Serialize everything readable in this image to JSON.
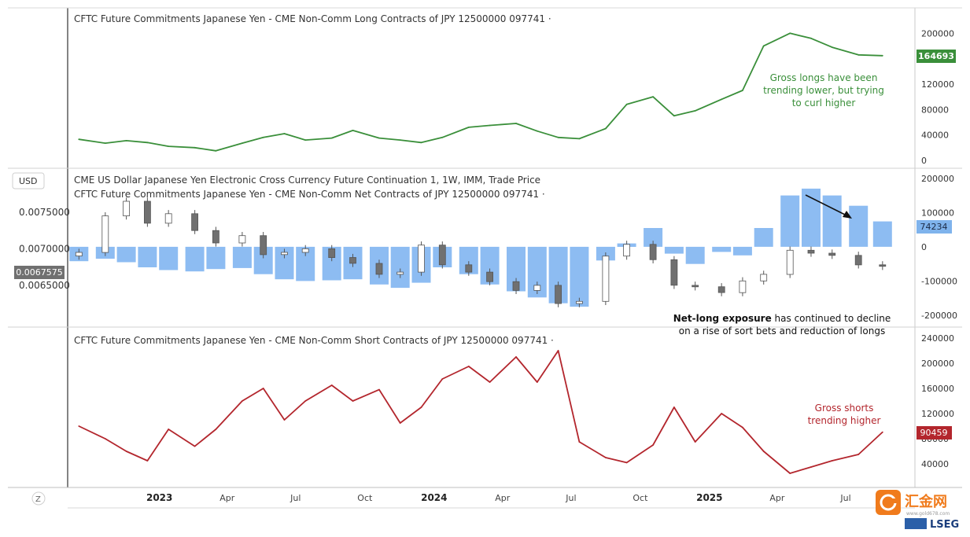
{
  "logo": {
    "brand": "汇金网",
    "url": "www.gold678.com",
    "vendor": "LSEG"
  },
  "colors": {
    "long": "#3a8f3a",
    "short": "#b3262d",
    "net_bar": "#8dbcf2",
    "candle_up": "#ffffff",
    "candle_down": "#707070"
  },
  "ui": {
    "usd_button": "USD",
    "z_button": "Z"
  },
  "chart_data": [
    {
      "type": "line",
      "title": "CFTC Future Commitments Japanese Yen - CME Non-Comm Long Contracts of JPY 12500000 097741 ·",
      "x": [
        "2022-09-16",
        "2022-10-21",
        "2022-11-18",
        "2022-12-16",
        "2023-01-13",
        "2023-02-17",
        "2023-03-17",
        "2023-04-21",
        "2023-05-19",
        "2023-06-16",
        "2023-07-14",
        "2023-08-18",
        "2023-09-15",
        "2023-10-20",
        "2023-11-17",
        "2023-12-15",
        "2024-01-12",
        "2024-02-16",
        "2024-03-15",
        "2024-04-19",
        "2024-05-17",
        "2024-06-14",
        "2024-07-12",
        "2024-08-16",
        "2024-09-13",
        "2024-10-18",
        "2024-11-15",
        "2024-12-13",
        "2025-01-17",
        "2025-02-14",
        "2025-03-14",
        "2025-04-18",
        "2025-05-16",
        "2025-06-13",
        "2025-07-18",
        "2025-08-19"
      ],
      "values": [
        33000,
        27000,
        31000,
        28000,
        22000,
        20000,
        15000,
        27000,
        36000,
        42000,
        32000,
        35000,
        47000,
        35000,
        32000,
        28000,
        36000,
        52000,
        55000,
        58000,
        46000,
        36000,
        34000,
        50000,
        88000,
        100000,
        70000,
        78000,
        96000,
        110000,
        180000,
        200000,
        192000,
        178000,
        166000,
        164693
      ],
      "ylim": [
        -10000,
        235000
      ],
      "ticks": [
        "200000",
        "160000",
        "120000",
        "80000",
        "40000",
        "0"
      ],
      "last_label": "164693",
      "annotation": [
        "Gross longs have been",
        "trending lower, but trying",
        "to curl higher"
      ]
    },
    {
      "type": "bar",
      "title": "CFTC Future Commitments Japanese Yen - CME Non-Comm Net Contracts of JPY 12500000 097741 ·",
      "x": [
        "2022-09-16",
        "2022-10-21",
        "2022-11-18",
        "2022-12-16",
        "2023-01-13",
        "2023-02-17",
        "2023-03-17",
        "2023-04-21",
        "2023-05-19",
        "2023-06-16",
        "2023-07-14",
        "2023-08-18",
        "2023-09-15",
        "2023-10-20",
        "2023-11-17",
        "2023-12-15",
        "2024-01-12",
        "2024-02-16",
        "2024-03-15",
        "2024-04-19",
        "2024-05-17",
        "2024-06-14",
        "2024-07-12",
        "2024-08-16",
        "2024-09-13",
        "2024-10-18",
        "2024-11-15",
        "2024-12-13",
        "2025-01-17",
        "2025-02-14",
        "2025-03-14",
        "2025-04-18",
        "2025-05-16",
        "2025-06-13",
        "2025-07-18",
        "2025-08-19"
      ],
      "values": [
        -42000,
        -35000,
        -45000,
        -60000,
        -68000,
        -72000,
        -65000,
        -62000,
        -80000,
        -95000,
        -100000,
        -98000,
        -95000,
        -110000,
        -120000,
        -105000,
        -60000,
        -80000,
        -110000,
        -130000,
        -148000,
        -165000,
        -175000,
        -40000,
        10000,
        55000,
        -20000,
        -50000,
        -15000,
        -25000,
        55000,
        150000,
        170000,
        150000,
        120000,
        74234
      ],
      "ylim": [
        -230000,
        225000
      ],
      "ticks": [
        "200000",
        "100000",
        "0",
        "-100000",
        "-200000"
      ],
      "last_label": "74234",
      "annotation_bold": "Net-long exposure",
      "annotation_rest": "has continued to decline",
      "annotation_line2": "on a rise of sort bets and reduction of longs"
    },
    {
      "type": "candlestick",
      "title": "CME US Dollar Japanese Yen Electronic Cross Currency Future Continuation 1, 1W, IMM, Trade Price",
      "x": [
        "2022-09-16",
        "2022-10-21",
        "2022-11-18",
        "2022-12-16",
        "2023-01-13",
        "2023-02-17",
        "2023-03-17",
        "2023-04-21",
        "2023-05-19",
        "2023-06-16",
        "2023-07-14",
        "2023-08-18",
        "2023-09-15",
        "2023-10-20",
        "2023-11-17",
        "2023-12-15",
        "2024-01-12",
        "2024-02-16",
        "2024-03-15",
        "2024-04-19",
        "2024-05-17",
        "2024-06-14",
        "2024-07-12",
        "2024-08-16",
        "2024-09-13",
        "2024-10-18",
        "2024-11-15",
        "2024-12-13",
        "2025-01-17",
        "2025-02-14",
        "2025-03-14",
        "2025-04-18",
        "2025-05-16",
        "2025-06-13",
        "2025-07-18",
        "2025-08-19"
      ],
      "values": [
        0.00695,
        0.00745,
        0.00765,
        0.00735,
        0.00748,
        0.00725,
        0.00708,
        0.00718,
        0.00692,
        0.00695,
        0.007,
        0.00688,
        0.0068,
        0.00665,
        0.00668,
        0.00705,
        0.00678,
        0.00668,
        0.00655,
        0.00643,
        0.0065,
        0.00625,
        0.00628,
        0.0069,
        0.00706,
        0.00685,
        0.0065,
        0.00648,
        0.0064,
        0.00656,
        0.00665,
        0.00698,
        0.00694,
        0.00691,
        0.00678,
        0.00676
      ],
      "ylim": [
        0.00595,
        0.00808
      ],
      "ticks": [
        "0.0075000",
        "0.0070000",
        "0.0065000"
      ],
      "last_label": "0.0067575",
      "currency": "USD"
    },
    {
      "type": "line",
      "title": "CFTC Future Commitments Japanese Yen - CME Non-Comm Short Contracts of JPY 12500000 097741 ·",
      "x": [
        "2022-09-16",
        "2022-10-21",
        "2022-11-18",
        "2022-12-16",
        "2023-01-13",
        "2023-02-17",
        "2023-03-17",
        "2023-04-21",
        "2023-05-19",
        "2023-06-16",
        "2023-07-14",
        "2023-08-18",
        "2023-09-15",
        "2023-10-20",
        "2023-11-17",
        "2023-12-15",
        "2024-01-12",
        "2024-02-16",
        "2024-03-15",
        "2024-04-19",
        "2024-05-17",
        "2024-06-14",
        "2024-07-12",
        "2024-08-16",
        "2024-09-13",
        "2024-10-18",
        "2024-11-15",
        "2024-12-13",
        "2025-01-17",
        "2025-02-14",
        "2025-03-14",
        "2025-04-18",
        "2025-05-16",
        "2025-06-13",
        "2025-07-18",
        "2025-08-19"
      ],
      "values": [
        100000,
        80000,
        60000,
        45000,
        95000,
        68000,
        95000,
        140000,
        160000,
        110000,
        140000,
        165000,
        140000,
        158000,
        105000,
        130000,
        175000,
        195000,
        170000,
        210000,
        170000,
        220000,
        75000,
        50000,
        42000,
        70000,
        130000,
        75000,
        120000,
        98000,
        60000,
        25000,
        35000,
        45000,
        55000,
        90459
      ],
      "ylim": [
        5000,
        255000
      ],
      "ticks": [
        "240000",
        "200000",
        "160000",
        "120000",
        "80000",
        "40000"
      ],
      "last_label": "90459",
      "annotation": [
        "Gross shorts",
        "trending higher"
      ]
    }
  ],
  "x_axis": {
    "labels": [
      "2023",
      "Apr",
      "Jul",
      "Oct",
      "2024",
      "Apr",
      "Jul",
      "Oct",
      "2025",
      "Apr",
      "Jul"
    ],
    "bold": [
      true,
      false,
      false,
      false,
      true,
      false,
      false,
      false,
      true,
      false,
      false
    ]
  }
}
